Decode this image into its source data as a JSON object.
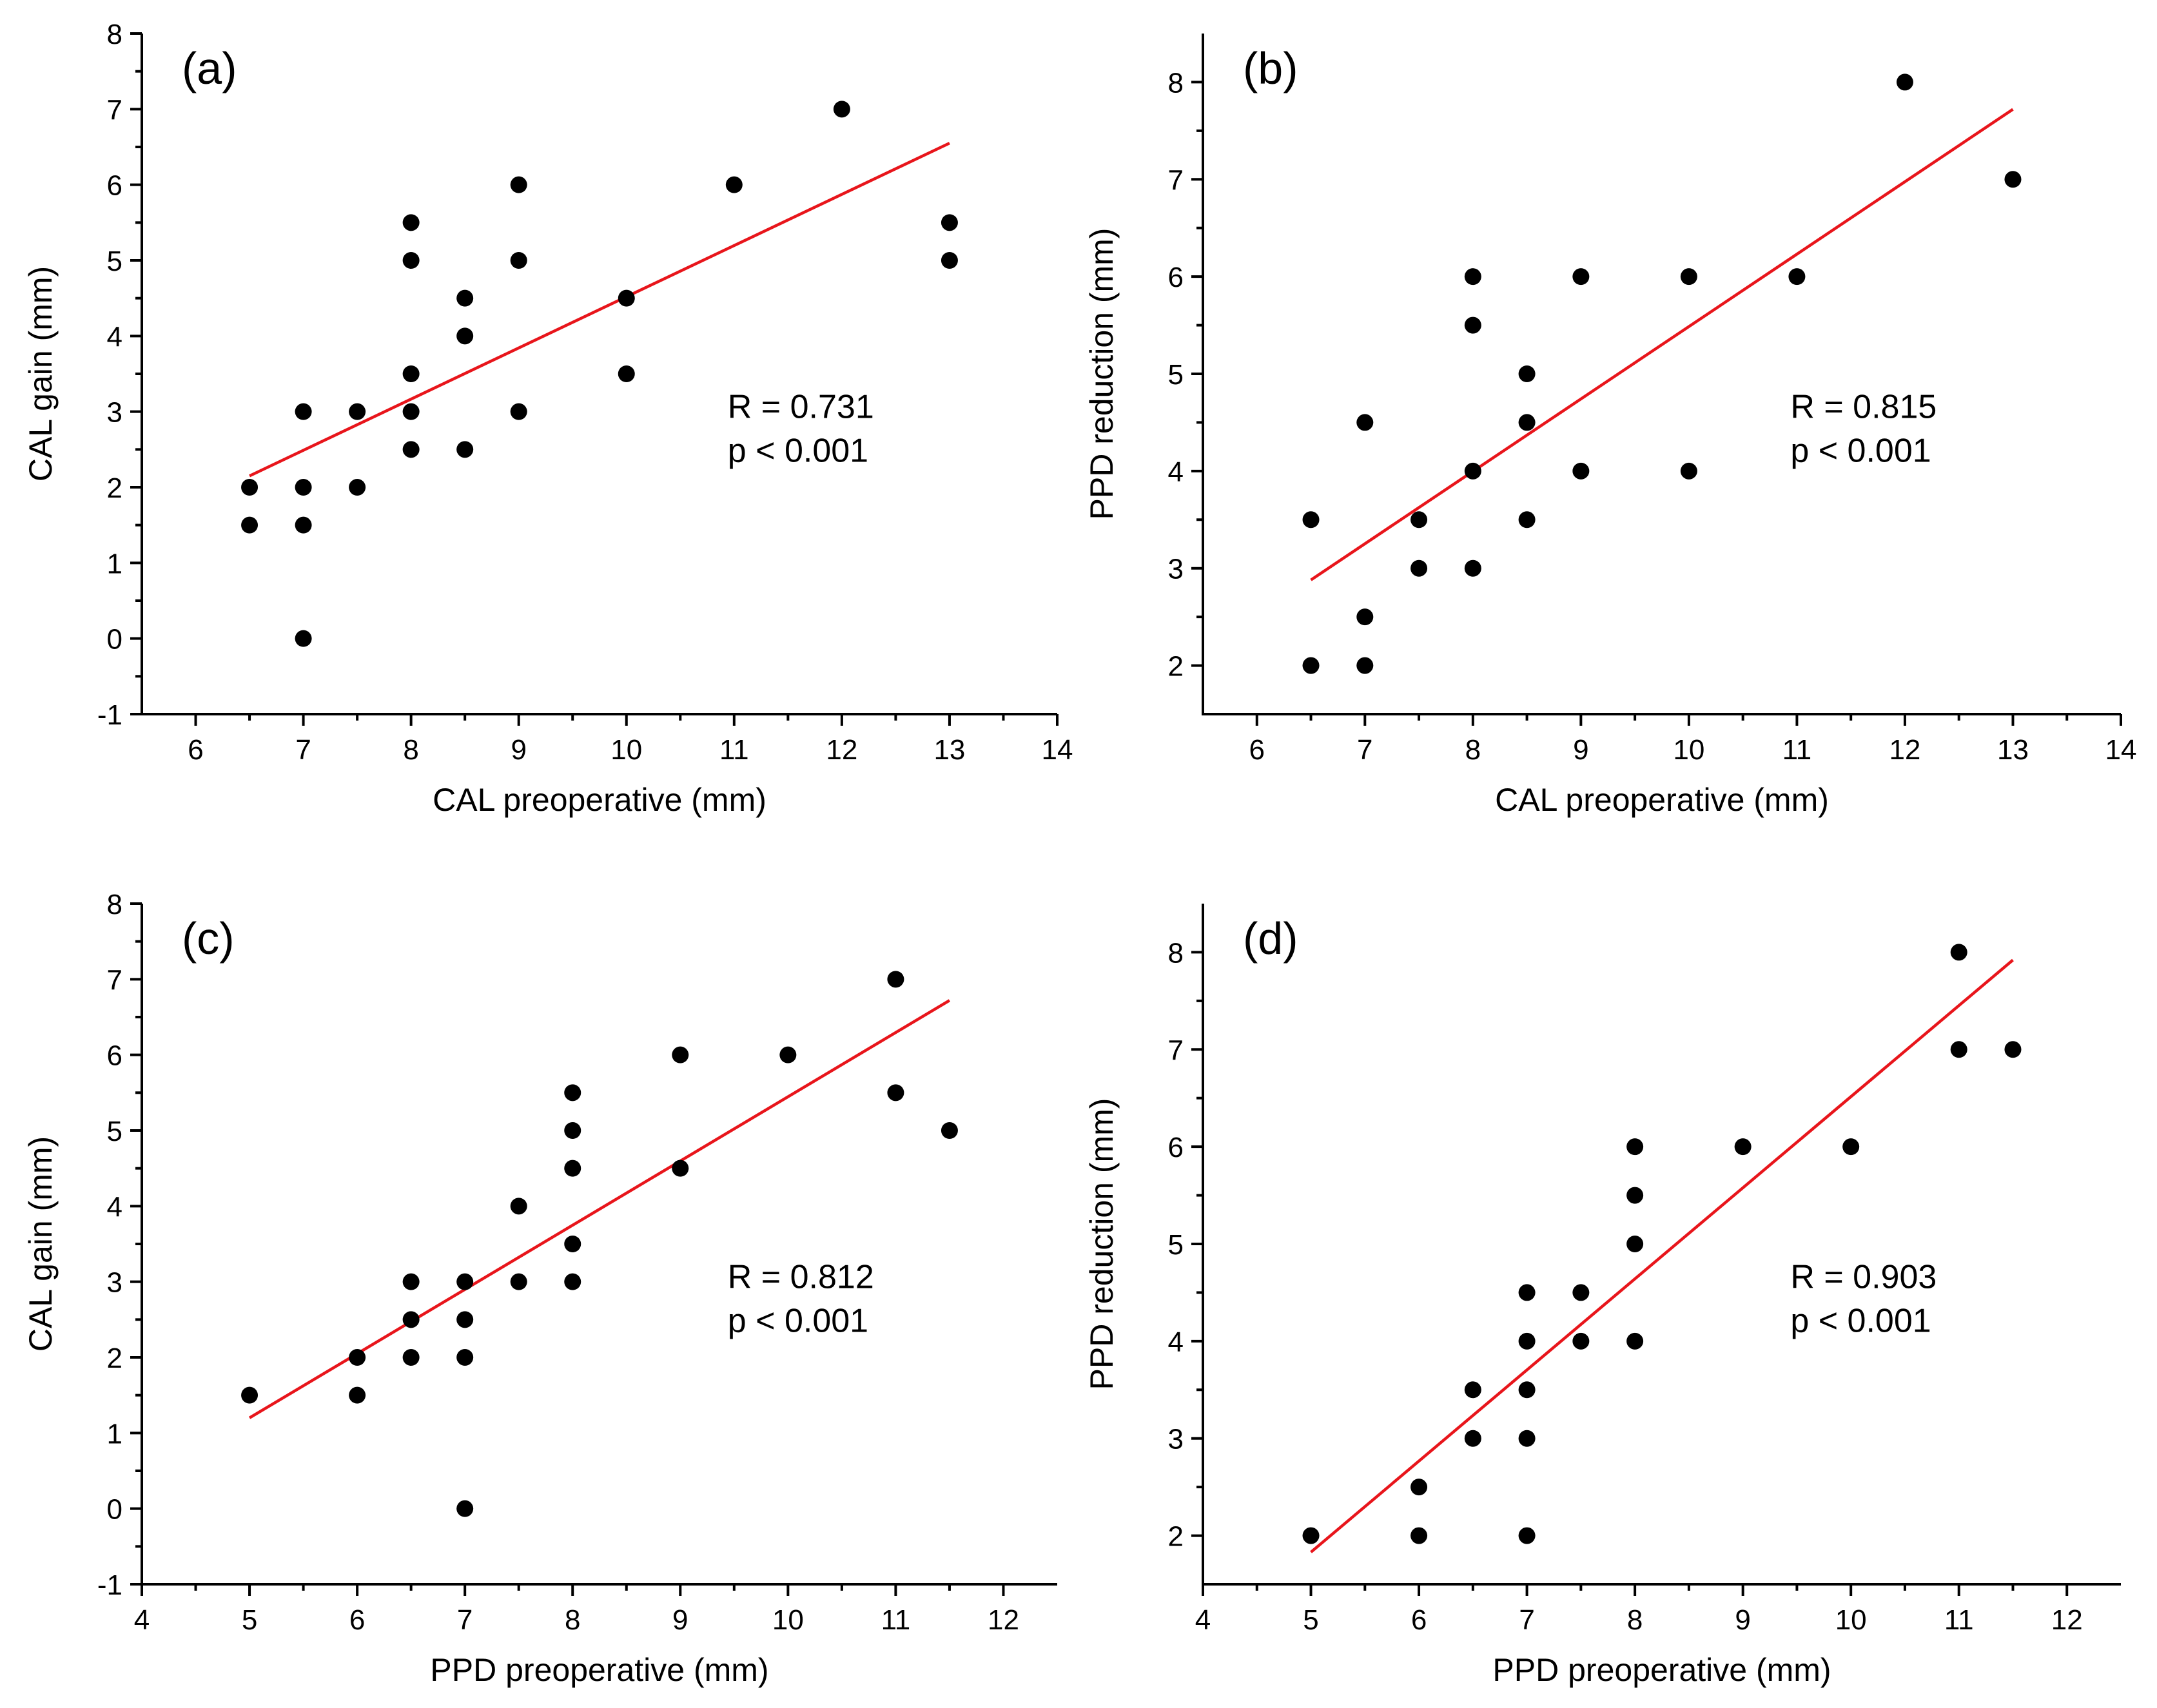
{
  "figure": {
    "line_color": "#e8151b",
    "point_color": "#000000"
  },
  "chart_data": [
    {
      "type": "scatter",
      "panel_label": "(a)",
      "title": "",
      "xlabel": "CAL preoperative (mm)",
      "ylabel": "CAL gain (mm)",
      "xlim": [
        5.5,
        14
      ],
      "ylim": [
        -1,
        8
      ],
      "xticks": [
        6,
        7,
        8,
        9,
        10,
        11,
        12,
        13,
        14
      ],
      "yticks": [
        -1,
        0,
        1,
        2,
        3,
        4,
        5,
        6,
        7,
        8
      ],
      "x_tick_labels": [
        "6",
        "7",
        "8",
        "9",
        "10",
        "11",
        "12",
        "13",
        "14"
      ],
      "y_tick_labels": [
        "-1",
        "0",
        "1",
        "2",
        "3",
        "4",
        "5",
        "6",
        "7",
        "8"
      ],
      "points": [
        [
          6.5,
          2
        ],
        [
          6.5,
          1.5
        ],
        [
          7,
          3
        ],
        [
          7,
          2
        ],
        [
          7,
          1.5
        ],
        [
          7,
          0
        ],
        [
          7.5,
          3
        ],
        [
          7.5,
          2
        ],
        [
          8,
          5.5
        ],
        [
          8,
          5
        ],
        [
          8,
          3.5
        ],
        [
          8,
          3
        ],
        [
          8,
          2.5
        ],
        [
          8.5,
          4.5
        ],
        [
          8.5,
          4
        ],
        [
          8.5,
          2.5
        ],
        [
          9,
          6
        ],
        [
          9,
          5
        ],
        [
          9,
          3
        ],
        [
          10,
          4.5
        ],
        [
          10,
          3.5
        ],
        [
          11,
          6
        ],
        [
          12,
          7
        ],
        [
          13,
          5.5
        ],
        [
          13,
          5
        ]
      ],
      "fit_line": {
        "x": [
          6.5,
          13
        ],
        "y": [
          2.15,
          6.55
        ]
      },
      "stats": {
        "r_text": "R = 0.731",
        "p_text": "p < 0.001"
      }
    },
    {
      "type": "scatter",
      "panel_label": "(b)",
      "title": "",
      "xlabel": "CAL preoperative (mm)",
      "ylabel": "PPD reduction (mm)",
      "xlim": [
        5.5,
        14
      ],
      "ylim": [
        1.5,
        8.5
      ],
      "xticks": [
        6,
        7,
        8,
        9,
        10,
        11,
        12,
        13,
        14
      ],
      "yticks": [
        2,
        3,
        4,
        5,
        6,
        7,
        8
      ],
      "x_tick_labels": [
        "6",
        "7",
        "8",
        "9",
        "10",
        "11",
        "12",
        "13",
        "14"
      ],
      "y_tick_labels": [
        "2",
        "3",
        "4",
        "5",
        "6",
        "7",
        "8"
      ],
      "points": [
        [
          6.5,
          3.5
        ],
        [
          6.5,
          2
        ],
        [
          7,
          4.5
        ],
        [
          7,
          2.5
        ],
        [
          7,
          2
        ],
        [
          7.5,
          3.5
        ],
        [
          7.5,
          3
        ],
        [
          8,
          6
        ],
        [
          8,
          5.5
        ],
        [
          8,
          4
        ],
        [
          8,
          3
        ],
        [
          8.5,
          5
        ],
        [
          8.5,
          4.5
        ],
        [
          8.5,
          3.5
        ],
        [
          9,
          6
        ],
        [
          9,
          4
        ],
        [
          10,
          6
        ],
        [
          10,
          4
        ],
        [
          11,
          6
        ],
        [
          12,
          8
        ],
        [
          13,
          7
        ]
      ],
      "fit_line": {
        "x": [
          6.5,
          13
        ],
        "y": [
          2.88,
          7.72
        ]
      },
      "stats": {
        "r_text": "R = 0.815",
        "p_text": "p < 0.001"
      }
    },
    {
      "type": "scatter",
      "panel_label": "(c)",
      "title": "",
      "xlabel": "PPD preoperative (mm)",
      "ylabel": "CAL gain (mm)",
      "xlim": [
        4,
        12.5
      ],
      "ylim": [
        -1,
        8
      ],
      "xticks": [
        4,
        5,
        6,
        7,
        8,
        9,
        10,
        11,
        12
      ],
      "yticks": [
        -1,
        0,
        1,
        2,
        3,
        4,
        5,
        6,
        7,
        8
      ],
      "x_tick_labels": [
        "4",
        "5",
        "6",
        "7",
        "8",
        "9",
        "10",
        "11",
        "12"
      ],
      "y_tick_labels": [
        "-1",
        "0",
        "1",
        "2",
        "3",
        "4",
        "5",
        "6",
        "7",
        "8"
      ],
      "points": [
        [
          5,
          1.5
        ],
        [
          6,
          2
        ],
        [
          6,
          1.5
        ],
        [
          6.5,
          3
        ],
        [
          6.5,
          2.5
        ],
        [
          6.5,
          2
        ],
        [
          7,
          3
        ],
        [
          7,
          2.5
        ],
        [
          7,
          2
        ],
        [
          7,
          0
        ],
        [
          7.5,
          4
        ],
        [
          7.5,
          3
        ],
        [
          8,
          5.5
        ],
        [
          8,
          5
        ],
        [
          8,
          4.5
        ],
        [
          8,
          3.5
        ],
        [
          8,
          3
        ],
        [
          9,
          6
        ],
        [
          9,
          4.5
        ],
        [
          10,
          6
        ],
        [
          11,
          7
        ],
        [
          11,
          5.5
        ],
        [
          11.5,
          5
        ]
      ],
      "fit_line": {
        "x": [
          5,
          11.5
        ],
        "y": [
          1.2,
          6.72
        ]
      },
      "stats": {
        "r_text": "R = 0.812",
        "p_text": "p < 0.001"
      }
    },
    {
      "type": "scatter",
      "panel_label": "(d)",
      "title": "",
      "xlabel": "PPD preoperative (mm)",
      "ylabel": "PPD reduction (mm)",
      "xlim": [
        4,
        12.5
      ],
      "ylim": [
        1.5,
        8.5
      ],
      "xticks": [
        4,
        5,
        6,
        7,
        8,
        9,
        10,
        11,
        12
      ],
      "yticks": [
        2,
        3,
        4,
        5,
        6,
        7,
        8
      ],
      "x_tick_labels": [
        "4",
        "5",
        "6",
        "7",
        "8",
        "9",
        "10",
        "11",
        "12"
      ],
      "y_tick_labels": [
        "2",
        "3",
        "4",
        "5",
        "6",
        "7",
        "8"
      ],
      "points": [
        [
          5,
          2
        ],
        [
          6,
          2.5
        ],
        [
          6,
          2
        ],
        [
          6.5,
          3.5
        ],
        [
          6.5,
          3
        ],
        [
          7,
          4.5
        ],
        [
          7,
          4
        ],
        [
          7,
          3.5
        ],
        [
          7,
          3
        ],
        [
          7,
          2
        ],
        [
          7.5,
          4.5
        ],
        [
          7.5,
          4
        ],
        [
          8,
          6
        ],
        [
          8,
          5.5
        ],
        [
          8,
          5
        ],
        [
          8,
          4
        ],
        [
          9,
          6
        ],
        [
          10,
          6
        ],
        [
          11,
          8
        ],
        [
          11,
          7
        ],
        [
          11.5,
          7
        ]
      ],
      "fit_line": {
        "x": [
          5,
          11.5
        ],
        "y": [
          1.83,
          7.92
        ]
      },
      "stats": {
        "r_text": "R = 0.903",
        "p_text": "p < 0.001"
      }
    }
  ]
}
